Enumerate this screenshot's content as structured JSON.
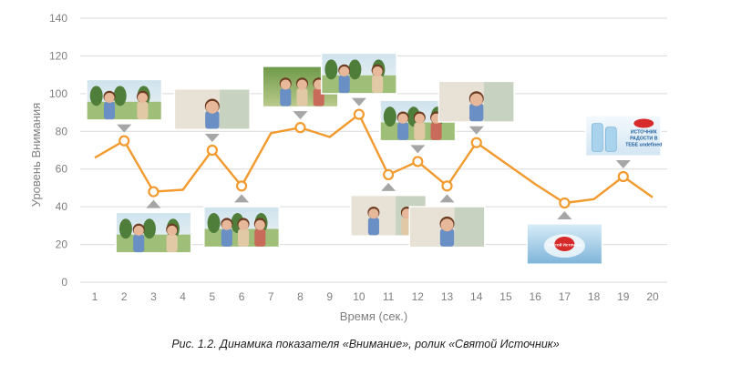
{
  "chart_data": {
    "type": "line",
    "x": [
      1,
      2,
      3,
      4,
      5,
      6,
      7,
      8,
      9,
      10,
      11,
      12,
      13,
      14,
      15,
      16,
      17,
      18,
      19,
      20
    ],
    "values": [
      66,
      75,
      48,
      49,
      70,
      51,
      79,
      82,
      77,
      89,
      57,
      64,
      51,
      74,
      63,
      52,
      42,
      44,
      56,
      45
    ],
    "marked_points": [
      2,
      3,
      5,
      6,
      8,
      10,
      11,
      12,
      13,
      14,
      17,
      19
    ],
    "xlabel": "Время (сек.)",
    "ylabel": "Уровень Внимания",
    "ylim": [
      0,
      140
    ],
    "yticks": [
      0,
      20,
      40,
      60,
      80,
      100,
      120,
      140
    ],
    "grid": true,
    "line_color": "#f29a2e",
    "grid_color": "#d9d9d9",
    "thumbnails": [
      {
        "x": 2,
        "position": "above",
        "scene": "family-cafe",
        "text": ""
      },
      {
        "x": 3,
        "position": "below",
        "scene": "girl-drinking",
        "text": ""
      },
      {
        "x": 5,
        "position": "above",
        "scene": "woman-drinking",
        "text": ""
      },
      {
        "x": 6,
        "position": "below",
        "scene": "family-table",
        "text": ""
      },
      {
        "x": 8,
        "position": "above",
        "scene": "park-walk",
        "text": ""
      },
      {
        "x": 10,
        "position": "above",
        "scene": "couple-laughing",
        "text": ""
      },
      {
        "x": 11,
        "position": "below",
        "scene": "couple-selfie",
        "text": ""
      },
      {
        "x": 12,
        "position": "above",
        "scene": "friends-steps",
        "text": ""
      },
      {
        "x": 13,
        "position": "below",
        "scene": "guy-drinking",
        "text": ""
      },
      {
        "x": 14,
        "position": "above",
        "scene": "guy-portrait",
        "text": ""
      },
      {
        "x": 17,
        "position": "below",
        "scene": "bottle-splash",
        "text": "Святой Источник"
      },
      {
        "x": 19,
        "position": "above",
        "scene": "packshot",
        "text": "ИСТОЧНИК РАДОСТИ В ТЕБЕ"
      }
    ]
  },
  "caption": "Рис. 1.2. Динамика показателя «Внимание», ролик «Святой Источник»"
}
